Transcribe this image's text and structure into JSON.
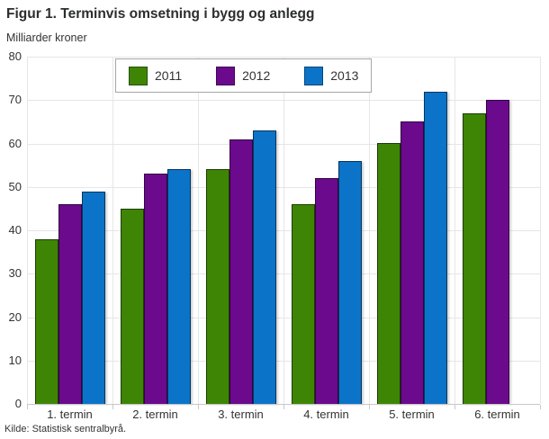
{
  "title": "Figur 1. Terminvis omsetning i bygg og anlegg",
  "subtitle": "Milliarder kroner",
  "source": "Kilde: Statistisk sentralbyrå.",
  "chart_data": {
    "type": "bar",
    "title": "Figur 1. Terminvis omsetning i bygg og anlegg",
    "subtitle": "Milliarder kroner",
    "categories": [
      "1. termin",
      "2. termin",
      "3. termin",
      "4. termin",
      "5. termin",
      "6. termin"
    ],
    "series": [
      {
        "name": "2011",
        "color": "#3e8505",
        "values": [
          38,
          45,
          54,
          46,
          60,
          67
        ]
      },
      {
        "name": "2012",
        "color": "#6b0a8c",
        "values": [
          46,
          53,
          61,
          52,
          65,
          70
        ]
      },
      {
        "name": "2013",
        "color": "#0b74c9",
        "values": [
          49,
          54,
          63,
          56,
          72,
          null
        ]
      }
    ],
    "xlabel": "",
    "ylabel": "Milliarder kroner",
    "ylim": [
      0,
      80
    ],
    "ytick_interval": 10,
    "yticks": [
      "0",
      "10",
      "20",
      "30",
      "40",
      "50",
      "60",
      "70",
      "80"
    ],
    "grid": true,
    "gridline_color": "#e6e6e6",
    "legend_position": "top-left-inside",
    "source": "Kilde: Statistisk sentralbyrå."
  }
}
